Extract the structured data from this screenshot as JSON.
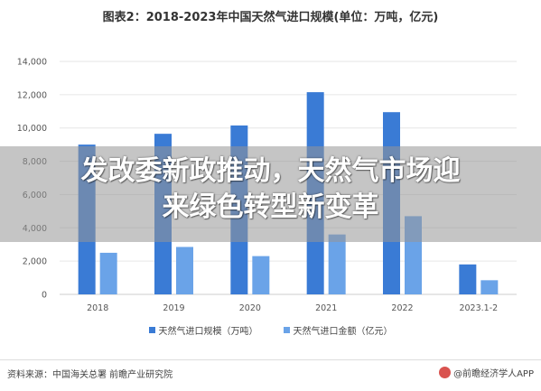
{
  "chart_data": {
    "type": "bar",
    "title": "图表2：2018-2023年中国天然气进口规模(单位：万吨，亿元)",
    "categories": [
      "2018",
      "2019",
      "2020",
      "2021",
      "2022",
      "2023.1-2"
    ],
    "series": [
      {
        "name": "天然气进口规模（万吨）",
        "color": "#3a7bd5",
        "values": [
          9000,
          9650,
          10150,
          12150,
          10950,
          1800
        ]
      },
      {
        "name": "天然气进口金额（亿元）",
        "color": "#6aa3e8",
        "values": [
          2500,
          2850,
          2300,
          3600,
          4700,
          850
        ]
      }
    ],
    "ylim": [
      0,
      14000
    ],
    "yticks": [
      "0",
      "2,000",
      "4,000",
      "6,000",
      "8,000",
      "10,000",
      "12,000",
      "14,000"
    ],
    "grid": true,
    "legend_position": "bottom"
  },
  "overlay": {
    "headline_line1": "发改委新政推动，天然气市场迎",
    "headline_line2": "来绿色转型新变革"
  },
  "footer": {
    "source": "资料来源：中国海关总署 前瞻产业研究院",
    "brand": "@前瞻经济学人APP"
  }
}
